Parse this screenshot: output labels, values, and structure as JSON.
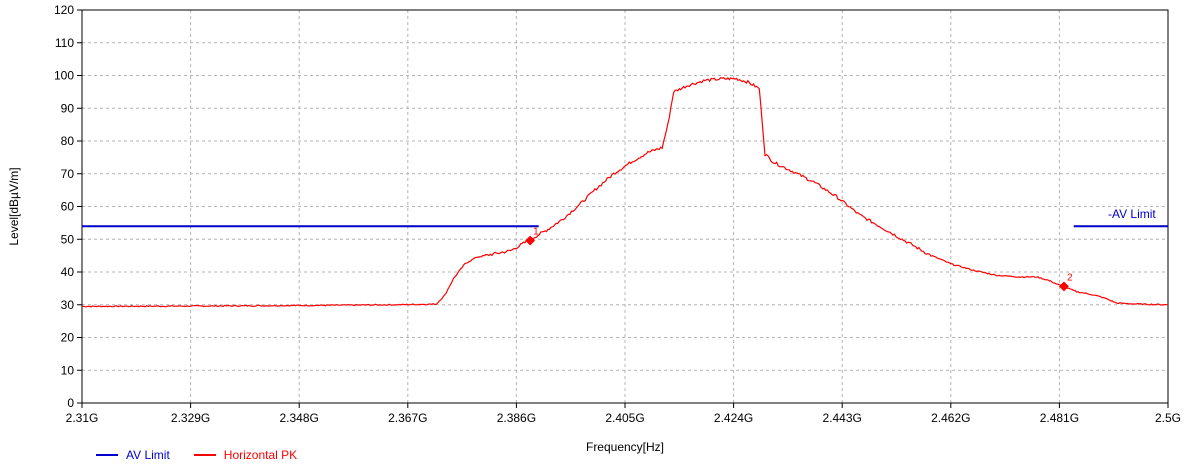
{
  "chart_data": {
    "type": "line",
    "title": "",
    "xlabel": "Frequency[Hz]",
    "ylabel": "Level[dBµV/m]",
    "xlim": [
      2.31,
      2.5
    ],
    "ylim": [
      0,
      120
    ],
    "x_ticks": [
      2.31,
      2.329,
      2.348,
      2.367,
      2.386,
      2.405,
      2.424,
      2.443,
      2.462,
      2.481,
      2.5
    ],
    "x_tick_labels": [
      "2.31G",
      "2.329G",
      "2.348G",
      "2.367G",
      "2.386G",
      "2.405G",
      "2.424G",
      "2.443G",
      "2.462G",
      "2.481G",
      "2.5G"
    ],
    "y_ticks": [
      0,
      10,
      20,
      30,
      40,
      50,
      60,
      70,
      80,
      90,
      100,
      110,
      120
    ],
    "y_tick_labels": [
      "0",
      "10",
      "20",
      "30",
      "40",
      "50",
      "60",
      "70",
      "80",
      "90",
      "100",
      "110",
      "120"
    ],
    "grid": true,
    "legend_position": "bottom-left",
    "series": [
      {
        "name": "AV Limit",
        "color": "#0000cc",
        "segments": [
          [
            [
              2.31,
              54
            ],
            [
              2.3899,
              54
            ]
          ],
          [
            [
              2.4835,
              54
            ],
            [
              2.5,
              54
            ]
          ]
        ]
      },
      {
        "name": "Horizontal PK",
        "color": "#ff0000",
        "x": [
          2.31,
          2.33,
          2.35,
          2.365,
          2.372,
          2.3735,
          2.375,
          2.377,
          2.379,
          2.382,
          2.385,
          2.387,
          2.389,
          2.3915,
          2.394,
          2.397,
          2.4,
          2.403,
          2.406,
          2.409,
          2.4115,
          2.4125,
          2.4135,
          2.416,
          2.419,
          2.422,
          2.4245,
          2.4265,
          2.4285,
          2.4295,
          2.431,
          2.434,
          2.438,
          2.442,
          2.446,
          2.45,
          2.454,
          2.458,
          2.462,
          2.466,
          2.47,
          2.474,
          2.477,
          2.479,
          2.481,
          2.484,
          2.487,
          2.489,
          2.491,
          2.495,
          2.5
        ],
        "values": [
          29.5,
          29.6,
          29.8,
          30.0,
          30.2,
          33.0,
          38.0,
          42.5,
          44.5,
          45.5,
          46.5,
          48.5,
          50.5,
          53.0,
          56.0,
          60.5,
          65.5,
          70.0,
          73.5,
          76.5,
          78.0,
          85.0,
          95.0,
          97.0,
          98.5,
          99.0,
          99.0,
          98.0,
          96.0,
          76.0,
          73.5,
          71.0,
          67.5,
          63.0,
          57.5,
          53.5,
          49.5,
          45.5,
          42.5,
          40.5,
          39.0,
          38.5,
          38.5,
          37.5,
          36.0,
          34.0,
          33.0,
          32.0,
          30.5,
          30.2,
          30.0
        ]
      }
    ],
    "annotations": [
      {
        "label": "1",
        "x": 2.3884,
        "y": 49.6,
        "color": "#ff0000"
      },
      {
        "label": "2",
        "x": 2.4818,
        "y": 35.6,
        "color": "#ff0000"
      },
      {
        "label": "-AV Limit",
        "x": 2.4895,
        "y": 54,
        "color": "#0000cc"
      }
    ]
  }
}
